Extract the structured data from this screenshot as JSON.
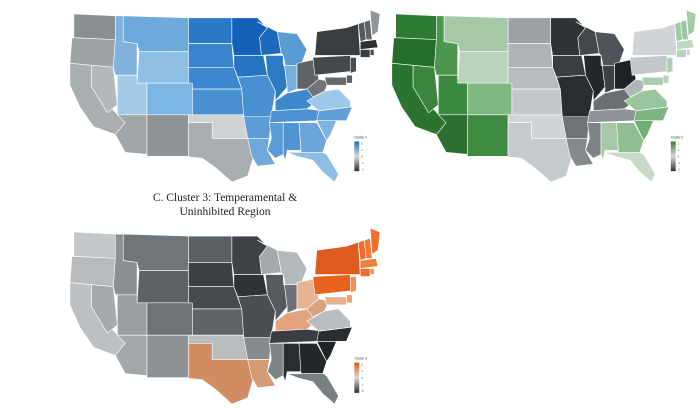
{
  "caption_c": [
    "C. Cluster 3: Temperamental &",
    "Uninhibited Region"
  ],
  "neutral_colors": {
    "light": "#d7d9da",
    "mid": "#9aa0a3",
    "dark": "#2d3133"
  },
  "maps": [
    {
      "key": "a",
      "legend_title": "Cluster 1",
      "legend_ticks": [
        "2",
        "1",
        "0",
        "-1",
        "-2"
      ],
      "accent": "#1f6fc4",
      "states": {
        "WA": "#8a9092",
        "OR": "#9ea4a6",
        "CA": "#a9aeb0",
        "NV": "#b3b8ba",
        "ID": "#7fb3de",
        "MT": "#6ea9dc",
        "WY": "#8fc0e4",
        "UT": "#a3c9e6",
        "AZ": "#9fa5a8",
        "CO": "#7db6e2",
        "NM": "#8e9497",
        "ND": "#2a78c8",
        "SD": "#3b84cd",
        "NE": "#3c87cf",
        "KS": "#4a91d3",
        "OK": "#cfd3d5",
        "TX": "#a8adb0",
        "MN": "#1560b8",
        "IA": "#2673c2",
        "MO": "#4890d2",
        "AR": "#5c9dd6",
        "LA": "#6fa8da",
        "WI": "#1f69bd",
        "IL": "#2d7ac4",
        "MI": "#5a9ad5",
        "IN": "#77b0de",
        "OH": "#5e6366",
        "KY": "#3e87cd",
        "TN": "#4d93d3",
        "MS": "#5b9cd6",
        "AL": "#4f93d1",
        "GA": "#6aa6da",
        "FL": "#8cbde3",
        "SC": "#7db4df",
        "NC": "#5f9fd7",
        "VA": "#9ec8e8",
        "WV": "#6f7578",
        "PA": "#44494c",
        "NY": "#393d40",
        "VT": "#55595c",
        "NH": "#5f6467",
        "ME": "#8f9598",
        "MA": "#2e3235",
        "CT": "#3a3e41",
        "RI": "#4a4e51",
        "NJ": "#484c4f",
        "DE": "#5a5e61",
        "MD": "#66696c"
      }
    },
    {
      "key": "b",
      "legend_title": "Cluster 2",
      "legend_ticks": [
        "2",
        "1",
        "0",
        "-1",
        "-2"
      ],
      "accent": "#2e7d32",
      "states": {
        "WA": "#2f7a33",
        "OR": "#256d2a",
        "CA": "#2b7430",
        "NV": "#3b853e",
        "ID": "#4d9650",
        "MT": "#a5c8a6",
        "WY": "#b9d4ba",
        "UT": "#3a8a3f",
        "AZ": "#2d6f30",
        "CO": "#7fb882",
        "NM": "#3e8a41",
        "ND": "#9ca1a4",
        "SD": "#aeb3b6",
        "NE": "#b7bcbf",
        "KS": "#c2c7ca",
        "OK": "#d0d4d6",
        "TX": "#c5cacc",
        "MN": "#2f3336",
        "IA": "#3a3e41",
        "MO": "#2a2e31",
        "AR": "#6e7376",
        "LA": "#858a8d",
        "WI": "#44484b",
        "IL": "#24282b",
        "MI": "#50545a",
        "IN": "#3d4144",
        "OH": "#1f2326",
        "KY": "#6a6f72",
        "TN": "#8f9497",
        "MS": "#7e8386",
        "AL": "#a8c7a9",
        "GA": "#8fbf91",
        "FL": "#c8d9c9",
        "SC": "#6fae72",
        "NC": "#7cb57f",
        "VA": "#9ac49c",
        "WV": "#b1b6b9",
        "PA": "#c2c7c9",
        "NY": "#d0d4d6",
        "VT": "#a2c9a4",
        "NH": "#9dc49f",
        "ME": "#a5caa7",
        "MA": "#c0d8c1",
        "CT": "#b8d3b9",
        "RI": "#c4dcc5",
        "NJ": "#adcfae",
        "DE": "#b7d2b8",
        "MD": "#a9cdab"
      }
    },
    {
      "key": "c",
      "legend_title": "Cluster 3",
      "legend_ticks": [
        "2",
        "1",
        "0",
        "-1",
        "-2"
      ],
      "accent": "#e0541f",
      "states": {
        "WA": "#c3c7c9",
        "OR": "#b7bbbd",
        "CA": "#bcc0c2",
        "NV": "#a6aaac",
        "ID": "#8a8f92",
        "MT": "#70757a",
        "WY": "#5d6266",
        "UT": "#999ea1",
        "AZ": "#a3a7aa",
        "CO": "#6e7377",
        "NM": "#8c9194",
        "ND": "#5b6064",
        "SD": "#3c4044",
        "NE": "#474b4f",
        "KS": "#5f6468",
        "OK": "#b9bdbf",
        "TX": "#d08d63",
        "MN": "#3f4347",
        "IA": "#2f3337",
        "MO": "#4a4e52",
        "AR": "#868b8e",
        "LA": "#d59b74",
        "WI": "#a6aaad",
        "IL": "#56595d",
        "MI": "#b5b9bb",
        "IN": "#6e7276",
        "OH": "#e7b491",
        "KY": "#e2a27c",
        "TN": "#3a3e42",
        "MS": "#7f8487",
        "AL": "#2a2e32",
        "GA": "#24282c",
        "FL": "#7a7f82",
        "SC": "#1f2327",
        "NC": "#292d31",
        "VA": "#b9bdc0",
        "WV": "#d8a37f",
        "PA": "#e8631f",
        "NY": "#e15a1d",
        "VT": "#ee6a24",
        "NH": "#f07a34",
        "ME": "#ee7030",
        "MA": "#f0813c",
        "CT": "#ec6f2b",
        "RI": "#f08c48",
        "NJ": "#f09256",
        "DE": "#f2a06a",
        "MD": "#eab08c"
      }
    }
  ]
}
